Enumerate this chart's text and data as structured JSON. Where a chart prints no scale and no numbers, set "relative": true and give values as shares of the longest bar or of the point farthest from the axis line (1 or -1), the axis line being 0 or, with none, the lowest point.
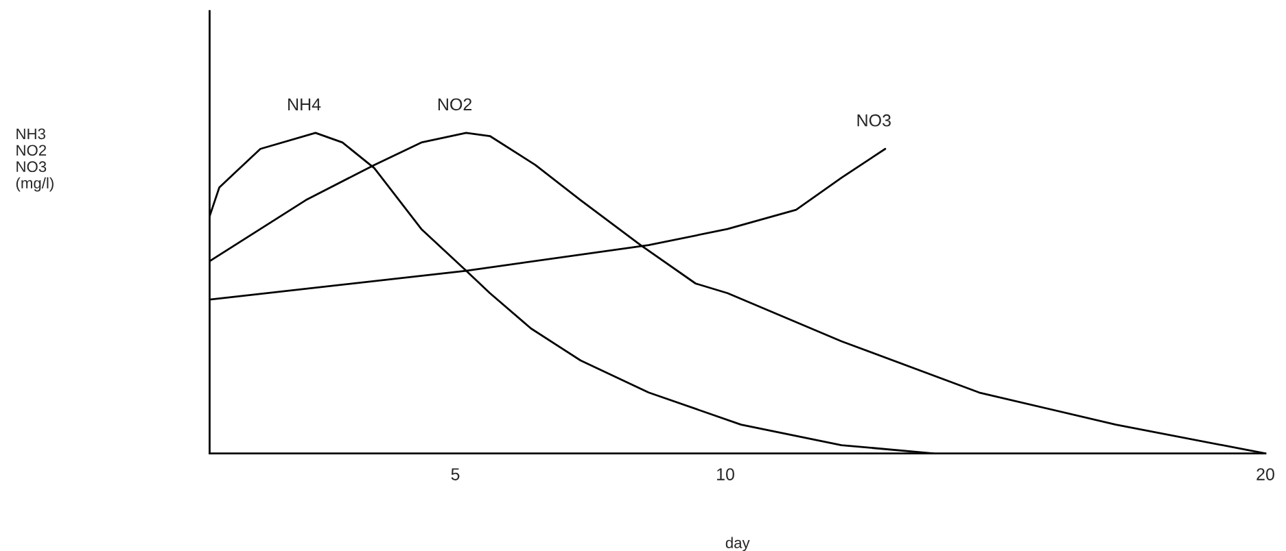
{
  "chart_data": {
    "type": "line",
    "relative": true,
    "xlabel": "day",
    "annotations": [
      "NH3\nNO2\nNO3\n(mg/l)"
    ],
    "xlim": [
      0.45,
      20
    ],
    "xticks": [
      5,
      10,
      20
    ],
    "grid": false,
    "legend": false,
    "marker": "none",
    "line_style": "solid",
    "series": [
      {
        "name": "NH4",
        "color": "#000000",
        "x": [
          0.45,
          0.63,
          1.39,
          2.41,
          2.91,
          3.5,
          4.37,
          5.2,
          5.64,
          6.4,
          7.32,
          8.58,
          10.29,
          12.15,
          13.85
        ],
        "values": [
          0.74,
          0.83,
          0.95,
          1.0,
          0.97,
          0.89,
          0.7,
          0.57,
          0.5,
          0.39,
          0.29,
          0.19,
          0.09,
          0.026,
          0.0
        ]
      },
      {
        "name": "NO2",
        "color": "#000000",
        "x": [
          0.45,
          2.23,
          3.5,
          4.37,
          5.2,
          5.64,
          6.48,
          7.32,
          8.43,
          9.45,
          10.04,
          12.15,
          14.7,
          17.23,
          20
        ],
        "values": [
          0.6,
          0.79,
          0.9,
          0.97,
          1.0,
          0.99,
          0.9,
          0.79,
          0.65,
          0.53,
          0.5,
          0.35,
          0.19,
          0.09,
          0.0
        ]
      },
      {
        "name": "NO3",
        "color": "#000000",
        "x": [
          0.45,
          5.2,
          8.58,
          10.04,
          11.31,
          12.15,
          12.96
        ],
        "values": [
          0.48,
          0.57,
          0.65,
          0.7,
          0.76,
          0.86,
          0.95
        ]
      }
    ]
  }
}
